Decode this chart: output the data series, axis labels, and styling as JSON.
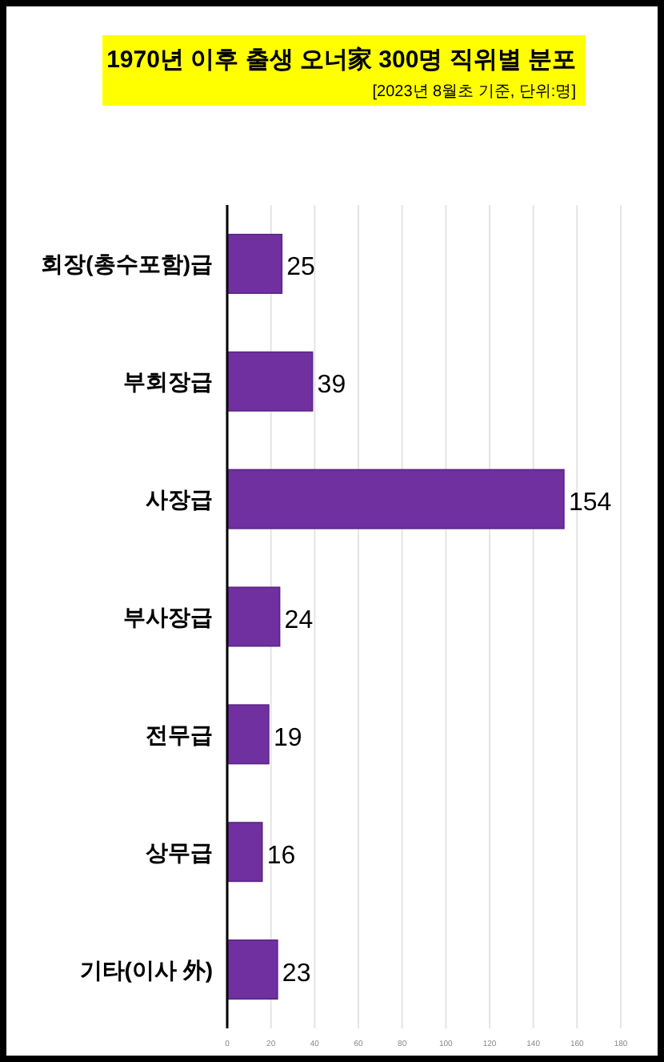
{
  "chart_data": {
    "type": "bar",
    "orientation": "horizontal",
    "title": "1970년 이후 출생 오너家 300명 직위별 분포",
    "subtitle": "[2023년 8월초 기준, 단위:명]",
    "categories": [
      "회장(총수포함)급",
      "부회장급",
      "사장급",
      "부사장급",
      "전무급",
      "상무급",
      "기타(이사 外)"
    ],
    "values": [
      25,
      39,
      154,
      24,
      19,
      16,
      23
    ],
    "color": "#7030a0",
    "data_labels": true,
    "grid": "x",
    "xlim": [
      0,
      180
    ],
    "xticks": [
      0,
      20,
      40,
      60,
      80,
      100,
      120,
      140,
      160,
      180
    ]
  }
}
